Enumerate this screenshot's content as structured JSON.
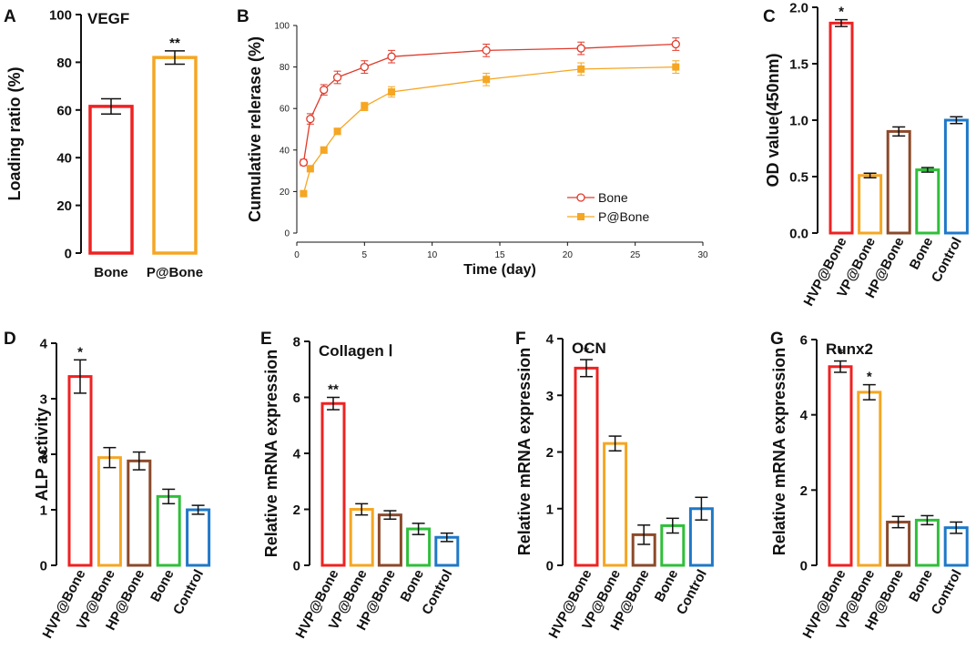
{
  "colors": {
    "red": "#ee2222",
    "orange": "#f5a623",
    "brown": "#8b4a2b",
    "green": "#2fbf3a",
    "blue": "#1f78c8",
    "axis": "#111111",
    "release_bone": "#e03a2a",
    "release_pbone": "#f5a623"
  },
  "chart_data": [
    {
      "id": "A",
      "panel_letter": "A",
      "type": "bar",
      "title": "VEGF",
      "ylabel": "Loading ratio (%)",
      "xlabel": "",
      "ylim": [
        0,
        100
      ],
      "yticks": [
        0,
        20,
        40,
        60,
        80,
        100
      ],
      "categories": [
        "Bone",
        "P@Bone"
      ],
      "values": [
        61.5,
        82
      ],
      "errors": [
        3.2,
        2.8
      ],
      "significance": [
        "",
        "**"
      ],
      "bar_colors": [
        "red",
        "orange"
      ]
    },
    {
      "id": "B",
      "panel_letter": "B",
      "type": "line",
      "title": "",
      "ylabel": "Cumulative relerase (%)",
      "xlabel": "Time (day)",
      "xlim": [
        0,
        30
      ],
      "xticks": [
        0,
        5,
        10,
        15,
        20,
        25,
        30
      ],
      "ylim": [
        0,
        100
      ],
      "yticks": [
        0,
        20,
        40,
        60,
        80,
        100
      ],
      "legend_position": "bottom-right",
      "series": [
        {
          "name": "Bone",
          "marker": "open-circle",
          "color": "release_bone",
          "x": [
            0.5,
            1,
            2,
            3,
            5,
            7,
            14,
            21,
            28
          ],
          "y": [
            34,
            55,
            69,
            75,
            80,
            85,
            88,
            89,
            91
          ],
          "errors": [
            1.5,
            2.5,
            2.5,
            3,
            3,
            3,
            3,
            3,
            3
          ]
        },
        {
          "name": "P@Bone",
          "marker": "filled-square",
          "color": "release_pbone",
          "x": [
            0.5,
            1,
            2,
            3,
            5,
            7,
            14,
            21,
            28
          ],
          "y": [
            19,
            31,
            40,
            49,
            61,
            68,
            74,
            79,
            80
          ],
          "errors": [
            1,
            1.5,
            1.5,
            1.5,
            2,
            2.5,
            3,
            3,
            3
          ]
        }
      ]
    },
    {
      "id": "C",
      "panel_letter": "C",
      "type": "bar",
      "title": "",
      "ylabel": "OD value(450nm)",
      "xlabel": "",
      "ylim": [
        0,
        2.0
      ],
      "yticks": [
        "0.0",
        "0.5",
        "1.0",
        "1.5",
        "2.0"
      ],
      "categories": [
        "HVP@Bone",
        "VP@Bone",
        "HP@Bone",
        "Bone",
        "Control"
      ],
      "values": [
        1.86,
        0.51,
        0.9,
        0.56,
        1.0
      ],
      "errors": [
        0.03,
        0.02,
        0.04,
        0.02,
        0.03
      ],
      "significance": [
        "*",
        "",
        "",
        "",
        ""
      ],
      "bar_colors": [
        "red",
        "orange",
        "brown",
        "green",
        "blue"
      ]
    },
    {
      "id": "D",
      "panel_letter": "D",
      "type": "bar",
      "title": "",
      "ylabel": "ALP activity",
      "xlabel": "",
      "ylim": [
        0,
        4
      ],
      "yticks": [
        0,
        1,
        2,
        3,
        4
      ],
      "categories": [
        "HVP@Bone",
        "VP@Bone",
        "HP@Bone",
        "Bone",
        "Control"
      ],
      "values": [
        3.4,
        1.94,
        1.88,
        1.24,
        1.0
      ],
      "errors": [
        0.3,
        0.18,
        0.16,
        0.13,
        0.08
      ],
      "significance": [
        "*",
        "",
        "",
        "",
        ""
      ],
      "bar_colors": [
        "red",
        "orange",
        "brown",
        "green",
        "blue"
      ]
    },
    {
      "id": "E",
      "panel_letter": "E",
      "type": "bar",
      "title": "Collagen Ⅰ",
      "ylabel": "Relative mRNA expression",
      "xlabel": "",
      "ylim": [
        0,
        8
      ],
      "yticks": [
        0,
        2,
        4,
        6,
        8
      ],
      "categories": [
        "HVP@Bone",
        "VP@Bone",
        "HP@Bone",
        "Bone",
        "Control"
      ],
      "values": [
        5.78,
        2.0,
        1.8,
        1.3,
        1.0
      ],
      "errors": [
        0.22,
        0.2,
        0.15,
        0.2,
        0.15
      ],
      "significance": [
        "**",
        "",
        "",
        "",
        ""
      ],
      "bar_colors": [
        "red",
        "orange",
        "brown",
        "green",
        "blue"
      ]
    },
    {
      "id": "F",
      "panel_letter": "F",
      "type": "bar",
      "title": "OCN",
      "ylabel": "Relative mRNA expression",
      "xlabel": "",
      "ylim": [
        0,
        4
      ],
      "yticks": [
        0,
        1,
        2,
        3,
        4
      ],
      "categories": [
        "HVP@Bone",
        "VP@Bone",
        "HP@Bone",
        "Bone",
        "Control"
      ],
      "values": [
        3.48,
        2.15,
        0.54,
        0.7,
        1.0
      ],
      "errors": [
        0.15,
        0.13,
        0.17,
        0.13,
        0.2
      ],
      "significance": [
        "*",
        "",
        "",
        "",
        ""
      ],
      "bar_colors": [
        "red",
        "orange",
        "brown",
        "green",
        "blue"
      ]
    },
    {
      "id": "G",
      "panel_letter": "G",
      "type": "bar",
      "title": "Runx2",
      "ylabel": "Relative mRNA expression",
      "xlabel": "",
      "ylim": [
        0,
        6
      ],
      "yticks": [
        0,
        2,
        4,
        6
      ],
      "categories": [
        "HVP@Bone",
        "VP@Bone",
        "HP@Bone",
        "Bone",
        "Control"
      ],
      "values": [
        5.28,
        4.6,
        1.15,
        1.2,
        1.0
      ],
      "errors": [
        0.15,
        0.2,
        0.15,
        0.12,
        0.15
      ],
      "significance": [
        "*",
        "*",
        "",
        "",
        ""
      ],
      "bar_colors": [
        "red",
        "orange",
        "brown",
        "green",
        "blue"
      ]
    }
  ]
}
